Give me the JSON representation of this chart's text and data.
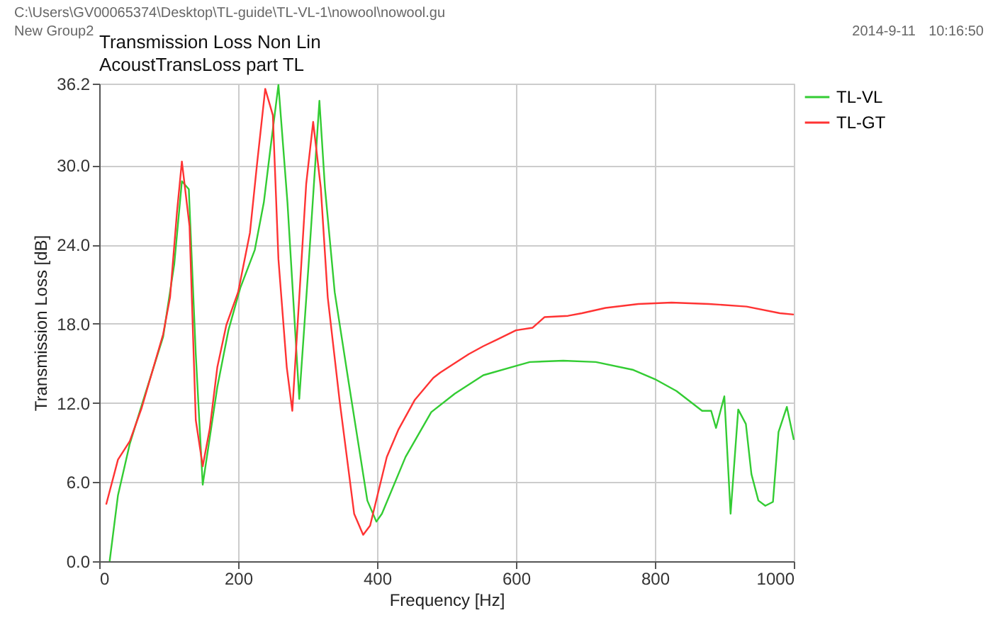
{
  "chart_data": {
    "type": "line",
    "title": "Transmission Loss Non Lin",
    "subtitle": "AcoustTransLoss part TL",
    "xlabel": "Frequency [Hz]",
    "ylabel": "Transmission Loss [dB]",
    "annotations": [
      "C:\\Users\\GV00065374\\Desktop\\TL-guide\\TL-VL-1\\nowool\\nowool.gu",
      "New Group2",
      "2014-9-11",
      "10:16:50"
    ],
    "xlim": [
      0,
      1000
    ],
    "xticks": [
      0,
      200,
      400,
      600,
      800,
      1000
    ],
    "ylim": [
      0,
      36.2
    ],
    "yticks": [
      {
        "value": 0,
        "label": "0.0"
      },
      {
        "value": 6,
        "label": "6.0"
      },
      {
        "value": 12,
        "label": "12.0"
      },
      {
        "value": 18,
        "label": "18.0"
      },
      {
        "value": 24,
        "label": "24.0"
      },
      {
        "value": 30,
        "label": "30.0"
      },
      {
        "value": 36.2,
        "label": "36.2"
      }
    ],
    "grid": true,
    "legend": "top right",
    "marker": "none",
    "line_style": "solid",
    "series": [
      {
        "name": "TL-VL",
        "color": "#33cc33",
        "x": [
          15,
          27,
          44,
          61,
          92,
          108,
          119,
          129,
          139,
          149,
          170,
          186,
          203,
          224,
          237,
          247,
          258,
          271,
          288,
          302,
          317,
          325,
          339,
          359,
          386,
          399,
          407,
          441,
          478,
          512,
          553,
          600,
          620,
          668,
          715,
          769,
          800,
          831,
          868,
          881,
          888,
          900,
          909,
          920,
          931,
          939,
          949,
          959,
          970,
          978,
          990,
          1000
        ],
        "values": [
          0,
          5.0,
          8.9,
          11.8,
          17.0,
          22.5,
          28.8,
          28.2,
          15.7,
          5.8,
          13.2,
          17.5,
          20.7,
          23.6,
          27.2,
          31.5,
          36.1,
          27.2,
          12.3,
          22.9,
          34.9,
          28.3,
          20.4,
          13.6,
          4.6,
          3.0,
          3.6,
          7.9,
          11.3,
          12.7,
          14.1,
          14.8,
          15.1,
          15.2,
          15.1,
          14.5,
          13.8,
          12.9,
          11.4,
          11.4,
          10.1,
          12.5,
          3.6,
          11.5,
          10.4,
          6.6,
          4.6,
          4.2,
          4.5,
          9.8,
          11.7,
          9.2
        ]
      },
      {
        "name": "TL-GT",
        "color": "#ff3333",
        "x": [
          10,
          27,
          44,
          61,
          92,
          102,
          112,
          119,
          130,
          139,
          149,
          159,
          170,
          183,
          200,
          217,
          227,
          239,
          250,
          258,
          270,
          278,
          298,
          308,
          319,
          329,
          346,
          367,
          380,
          390,
          414,
          431,
          454,
          481,
          491,
          532,
          553,
          573,
          600,
          624,
          641,
          675,
          695,
          729,
          776,
          824,
          878,
          932,
          980,
          1000
        ],
        "values": [
          4.3,
          7.7,
          9.1,
          11.6,
          17.2,
          20.0,
          26.5,
          30.3,
          25.4,
          10.7,
          7.2,
          10.0,
          14.7,
          17.9,
          20.4,
          24.9,
          30.0,
          35.8,
          33.8,
          22.9,
          14.7,
          11.4,
          28.6,
          33.3,
          28.3,
          20.0,
          12.2,
          3.6,
          2.0,
          2.7,
          7.9,
          10.0,
          12.2,
          13.9,
          14.3,
          15.7,
          16.3,
          16.8,
          17.5,
          17.7,
          18.5,
          18.6,
          18.8,
          19.2,
          19.5,
          19.6,
          19.5,
          19.3,
          18.8,
          18.7
        ]
      }
    ]
  }
}
